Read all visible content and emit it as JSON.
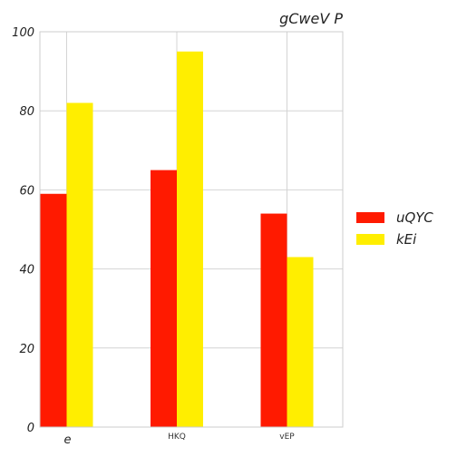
{
  "chart_data": {
    "type": "bar",
    "title": "gCweV  P",
    "categories": [
      "e",
      "HKQ",
      "vEP"
    ],
    "series": [
      {
        "name": "uQYC",
        "values": [
          59,
          65,
          54
        ],
        "color": "#ff1a00"
      },
      {
        "name": "kEi",
        "values": [
          82,
          95,
          43
        ],
        "color": "#ffee00"
      }
    ],
    "ylim": [
      0,
      100
    ],
    "yticks": [
      0,
      20,
      40,
      60,
      80,
      100
    ],
    "grid": true,
    "legend_position": "right"
  }
}
